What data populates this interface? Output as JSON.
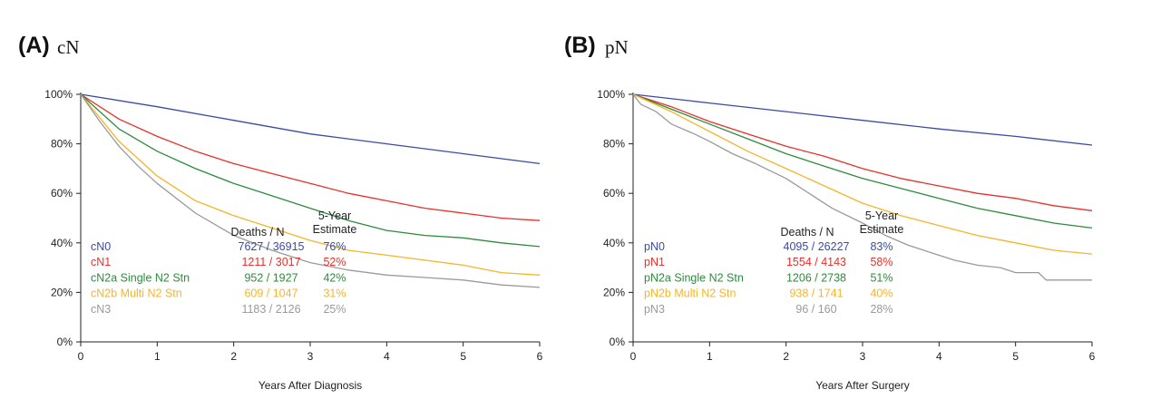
{
  "chart_data": [
    {
      "type": "line",
      "panel_label": "(A)",
      "panel_name": "cN",
      "xlabel": "Years After Diagnosis",
      "ylabel": "",
      "xlim": [
        0,
        6
      ],
      "ylim": [
        0,
        100
      ],
      "xticks": [
        "0",
        "1",
        "2",
        "3",
        "4",
        "5",
        "6"
      ],
      "yticks": [
        "0%",
        "20%",
        "40%",
        "60%",
        "80%",
        "100%"
      ],
      "grid": false,
      "legend_placement": "bottom-left inside",
      "legend_headers": {
        "deaths": "Deaths / N",
        "estimate_line1": "5-Year",
        "estimate_line2": "Estimate"
      },
      "series": [
        {
          "name": "cN0",
          "color": "#3a4aa8",
          "deaths_n": "7627 / 36915",
          "estimate": "76%",
          "x": [
            0,
            1,
            2,
            3,
            4,
            5,
            6
          ],
          "y": [
            100,
            95,
            89.5,
            84,
            80,
            76,
            72
          ]
        },
        {
          "name": "cN1",
          "color": "#e8302a",
          "deaths_n": "1211 / 3017",
          "estimate": "52%",
          "x": [
            0,
            0.5,
            1,
            1.5,
            2,
            2.5,
            3,
            3.5,
            4,
            4.5,
            5,
            5.5,
            6
          ],
          "y": [
            100,
            90,
            83,
            77,
            72,
            68,
            64,
            60,
            57,
            54,
            52,
            50,
            49
          ]
        },
        {
          "name": "cN2a Single N2 Stn",
          "color": "#2e8b3e",
          "deaths_n": "952 / 1927",
          "estimate": "42%",
          "x": [
            0,
            0.5,
            1,
            1.5,
            2,
            2.5,
            3,
            3.5,
            4,
            4.5,
            5,
            5.5,
            6
          ],
          "y": [
            100,
            86,
            77,
            70,
            64,
            59,
            54,
            49,
            45,
            43,
            42,
            40,
            38.5
          ]
        },
        {
          "name": "cN2b Multi N2 Stn",
          "color": "#f5b52a",
          "deaths_n": "609 / 1047",
          "estimate": "31%",
          "x": [
            0,
            0.5,
            1,
            1.5,
            2,
            2.5,
            3,
            3.5,
            4,
            4.5,
            5,
            5.5,
            6
          ],
          "y": [
            100,
            81,
            67,
            57,
            51,
            46,
            41,
            37,
            35,
            33,
            31,
            28,
            27
          ]
        },
        {
          "name": "cN3",
          "color": "#9a9a9a",
          "deaths_n": "1183 / 2126",
          "estimate": "25%",
          "x": [
            0,
            0.25,
            0.5,
            0.75,
            1,
            1.5,
            2,
            2.5,
            3,
            3.5,
            4,
            4.5,
            5,
            5.5,
            6
          ],
          "y": [
            100,
            89,
            79,
            71,
            64,
            52,
            43,
            37,
            32,
            29,
            27,
            26,
            25,
            23,
            22
          ]
        }
      ]
    },
    {
      "type": "line",
      "panel_label": "(B)",
      "panel_name": "pN",
      "xlabel": "Years After Surgery",
      "ylabel": "",
      "xlim": [
        0,
        6
      ],
      "ylim": [
        0,
        100
      ],
      "xticks": [
        "0",
        "1",
        "2",
        "3",
        "4",
        "5",
        "6"
      ],
      "yticks": [
        "0%",
        "20%",
        "40%",
        "60%",
        "80%",
        "100%"
      ],
      "grid": false,
      "legend_placement": "bottom-left inside",
      "legend_headers": {
        "deaths": "Deaths / N",
        "estimate_line1": "5-Year",
        "estimate_line2": "Estimate"
      },
      "series": [
        {
          "name": "pN0",
          "color": "#3a4aa8",
          "deaths_n": "4095 / 26227",
          "estimate": "83%",
          "x": [
            0,
            1,
            2,
            3,
            4,
            5,
            6
          ],
          "y": [
            100,
            96.5,
            93,
            89.5,
            86,
            83,
            79.5
          ]
        },
        {
          "name": "pN1",
          "color": "#e8302a",
          "deaths_n": "1554 / 4143",
          "estimate": "58%",
          "x": [
            0,
            0.5,
            1,
            1.5,
            2,
            2.5,
            3,
            3.5,
            4,
            4.5,
            5,
            5.5,
            6
          ],
          "y": [
            100,
            95,
            89,
            84,
            79,
            75,
            70,
            66,
            63,
            60,
            58,
            55,
            53
          ]
        },
        {
          "name": "pN2a Single N2 Stn",
          "color": "#2e8b3e",
          "deaths_n": "1206 / 2738",
          "estimate": "51%",
          "x": [
            0,
            0.5,
            1,
            1.5,
            2,
            2.5,
            3,
            3.5,
            4,
            4.5,
            5,
            5.5,
            6
          ],
          "y": [
            100,
            94,
            88,
            82,
            76,
            71,
            66,
            62,
            58,
            54,
            51,
            48,
            46
          ]
        },
        {
          "name": "pN2b Multi N2 Stn",
          "color": "#f5b52a",
          "deaths_n": "938 / 1741",
          "estimate": "40%",
          "x": [
            0,
            0.5,
            1,
            1.5,
            2,
            2.5,
            3,
            3.5,
            4,
            4.5,
            5,
            5.5,
            6
          ],
          "y": [
            100,
            93,
            85,
            77,
            70,
            63,
            56,
            51,
            47,
            43,
            40,
            37,
            35.5
          ]
        },
        {
          "name": "pN3",
          "color": "#9a9a9a",
          "deaths_n": "96 / 160",
          "estimate": "28%",
          "x": [
            0,
            0.1,
            0.3,
            0.5,
            0.8,
            1,
            1.3,
            1.6,
            2,
            2.3,
            2.6,
            3,
            3.3,
            3.6,
            3.9,
            4.2,
            4.5,
            4.8,
            5,
            5.3,
            5.4,
            6
          ],
          "y": [
            100,
            96,
            93,
            88,
            84,
            81,
            76,
            72,
            66,
            60,
            54,
            48,
            43,
            39,
            36,
            33,
            31,
            30,
            28,
            28,
            25,
            25
          ]
        }
      ]
    }
  ]
}
